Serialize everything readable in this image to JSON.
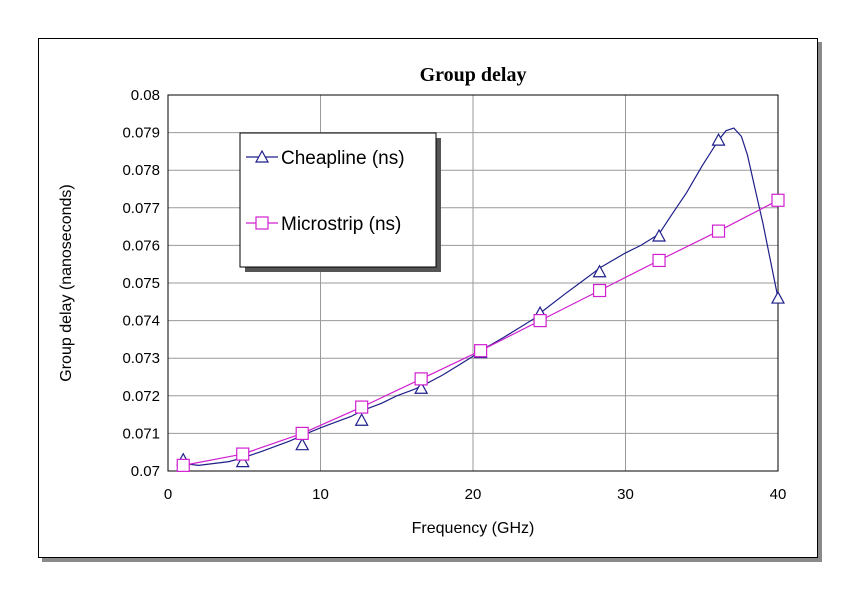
{
  "chart_data": {
    "type": "line",
    "title": "Group delay",
    "xlabel": "Frequency (GHz)",
    "ylabel": "Group delay (nanoseconds)",
    "xlim": [
      0,
      40
    ],
    "ylim": [
      0.07,
      0.08
    ],
    "x_ticks": [
      "0",
      "10",
      "20",
      "30",
      "40"
    ],
    "y_ticks": [
      "0.07",
      "0.071",
      "0.072",
      "0.073",
      "0.074",
      "0.075",
      "0.076",
      "0.077",
      "0.078",
      "0.079",
      "0.08"
    ],
    "grid": true,
    "legend_position": "top-left",
    "series": [
      {
        "name": "Cheapline (ns)",
        "color": "#1f1f8a",
        "marker": "triangle",
        "x": [
          1,
          4.9,
          8.8,
          12.7,
          16.6,
          20.5,
          24.4,
          28.3,
          32.2,
          36.1,
          40
        ],
        "y": [
          0.0703,
          0.07025,
          0.0707,
          0.07135,
          0.0722,
          0.07315,
          0.0742,
          0.0753,
          0.07625,
          0.0788,
          0.0746
        ],
        "curve_x": [
          1,
          2,
          3,
          4,
          4.9,
          6,
          7,
          8,
          8.8,
          10,
          11,
          12,
          12.7,
          14,
          15,
          16,
          16.6,
          18,
          19,
          20,
          20.5,
          22,
          23,
          24,
          24.4,
          26,
          27,
          28,
          28.3,
          30,
          31,
          32,
          32.2,
          33,
          34,
          35,
          36.1,
          36.6,
          37.1,
          37.6,
          38,
          38.5,
          39,
          39.5,
          40
        ],
        "curve_y": [
          0.0702,
          0.07015,
          0.0702,
          0.07025,
          0.07035,
          0.0705,
          0.07065,
          0.0708,
          0.07095,
          0.07115,
          0.0713,
          0.07145,
          0.0716,
          0.0718,
          0.072,
          0.07215,
          0.07225,
          0.07255,
          0.0728,
          0.07305,
          0.0732,
          0.07355,
          0.0738,
          0.07405,
          0.0742,
          0.0747,
          0.075,
          0.0753,
          0.0754,
          0.0758,
          0.076,
          0.07625,
          0.0763,
          0.0768,
          0.0774,
          0.0781,
          0.0788,
          0.07905,
          0.07912,
          0.0789,
          0.0784,
          0.0775,
          0.0766,
          0.0756,
          0.0746
        ]
      },
      {
        "name": "Microstrip (ns)",
        "color": "#d020d0",
        "marker": "square",
        "x": [
          1,
          4.9,
          8.8,
          12.7,
          16.6,
          20.5,
          24.4,
          28.3,
          32.2,
          36.1,
          40
        ],
        "y": [
          0.07015,
          0.07045,
          0.071,
          0.0717,
          0.07245,
          0.0732,
          0.074,
          0.0748,
          0.0756,
          0.07638,
          0.0772
        ]
      }
    ]
  }
}
